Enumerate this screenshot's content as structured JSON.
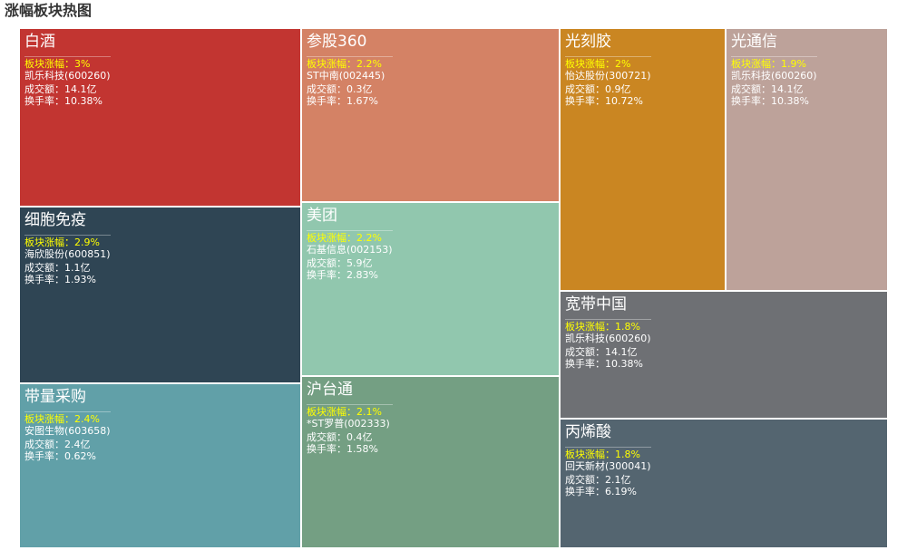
{
  "title": "涨幅板块热图",
  "labels": {
    "change_prefix": "板块涨幅：",
    "amount_prefix": "成交额：",
    "turnover_prefix": "换手率："
  },
  "chart_data": {
    "type": "treemap",
    "title": "涨幅板块热图",
    "items": [
      {
        "name": "白酒",
        "change": "3%",
        "stock": "凯乐科技(600260)",
        "amount": "14.1亿",
        "turnover": "10.38%",
        "color": "#c23531"
      },
      {
        "name": "细胞免疫",
        "change": "2.9%",
        "stock": "海欣股份(600851)",
        "amount": "1.1亿",
        "turnover": "1.93%",
        "color": "#2f4554"
      },
      {
        "name": "带量采购",
        "change": "2.4%",
        "stock": "安图生物(603658)",
        "amount": "2.4亿",
        "turnover": "0.62%",
        "color": "#61a0a8"
      },
      {
        "name": "参股360",
        "change": "2.2%",
        "stock": "ST中南(002445)",
        "amount": "0.3亿",
        "turnover": "1.67%",
        "color": "#d48265"
      },
      {
        "name": "美团",
        "change": "2.2%",
        "stock": "石基信息(002153)",
        "amount": "5.9亿",
        "turnover": "2.83%",
        "color": "#91c7ae"
      },
      {
        "name": "沪台通",
        "change": "2.1%",
        "stock": "*ST罗普(002333)",
        "amount": "0.4亿",
        "turnover": "1.58%",
        "color": "#749f83"
      },
      {
        "name": "光刻胶",
        "change": "2%",
        "stock": "怡达股份(300721)",
        "amount": "0.9亿",
        "turnover": "10.72%",
        "color": "#ca8622"
      },
      {
        "name": "光通信",
        "change": "1.9%",
        "stock": "凯乐科技(600260)",
        "amount": "14.1亿",
        "turnover": "10.38%",
        "color": "#bda29a"
      },
      {
        "name": "宽带中国",
        "change": "1.8%",
        "stock": "凯乐科技(600260)",
        "amount": "14.1亿",
        "turnover": "10.38%",
        "color": "#6e7074"
      },
      {
        "name": "丙烯酸",
        "change": "1.8%",
        "stock": "回天新材(300041)",
        "amount": "2.1亿",
        "turnover": "6.19%",
        "color": "#546570"
      }
    ]
  }
}
